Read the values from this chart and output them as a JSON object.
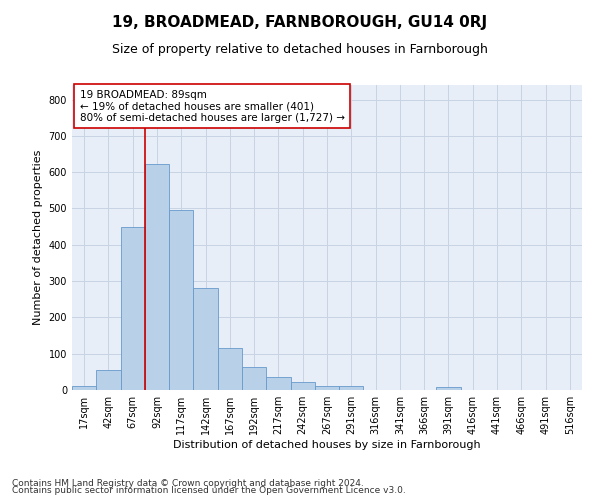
{
  "title": "19, BROADMEAD, FARNBOROUGH, GU14 0RJ",
  "subtitle": "Size of property relative to detached houses in Farnborough",
  "xlabel": "Distribution of detached houses by size in Farnborough",
  "ylabel": "Number of detached properties",
  "bin_labels": [
    "17sqm",
    "42sqm",
    "67sqm",
    "92sqm",
    "117sqm",
    "142sqm",
    "167sqm",
    "192sqm",
    "217sqm",
    "242sqm",
    "267sqm",
    "291sqm",
    "316sqm",
    "341sqm",
    "366sqm",
    "391sqm",
    "416sqm",
    "441sqm",
    "466sqm",
    "491sqm",
    "516sqm"
  ],
  "bar_values": [
    12,
    55,
    450,
    622,
    497,
    280,
    117,
    62,
    35,
    22,
    10,
    10,
    0,
    0,
    0,
    8,
    0,
    0,
    0,
    0,
    0
  ],
  "bar_color": "#b8d0e8",
  "bar_edge_color": "#6699cc",
  "property_line_color": "#cc0000",
  "annotation_text": "19 BROADMEAD: 89sqm\n← 19% of detached houses are smaller (401)\n80% of semi-detached houses are larger (1,727) →",
  "annotation_box_color": "#ffffff",
  "annotation_box_edge_color": "#cc0000",
  "ylim": [
    0,
    840
  ],
  "yticks": [
    0,
    100,
    200,
    300,
    400,
    500,
    600,
    700,
    800
  ],
  "grid_color": "#c8d4e4",
  "background_color": "#e8eef8",
  "footer_line1": "Contains HM Land Registry data © Crown copyright and database right 2024.",
  "footer_line2": "Contains public sector information licensed under the Open Government Licence v3.0.",
  "title_fontsize": 11,
  "subtitle_fontsize": 9,
  "axis_label_fontsize": 8,
  "tick_fontsize": 7,
  "annotation_fontsize": 7.5,
  "footer_fontsize": 6.5
}
